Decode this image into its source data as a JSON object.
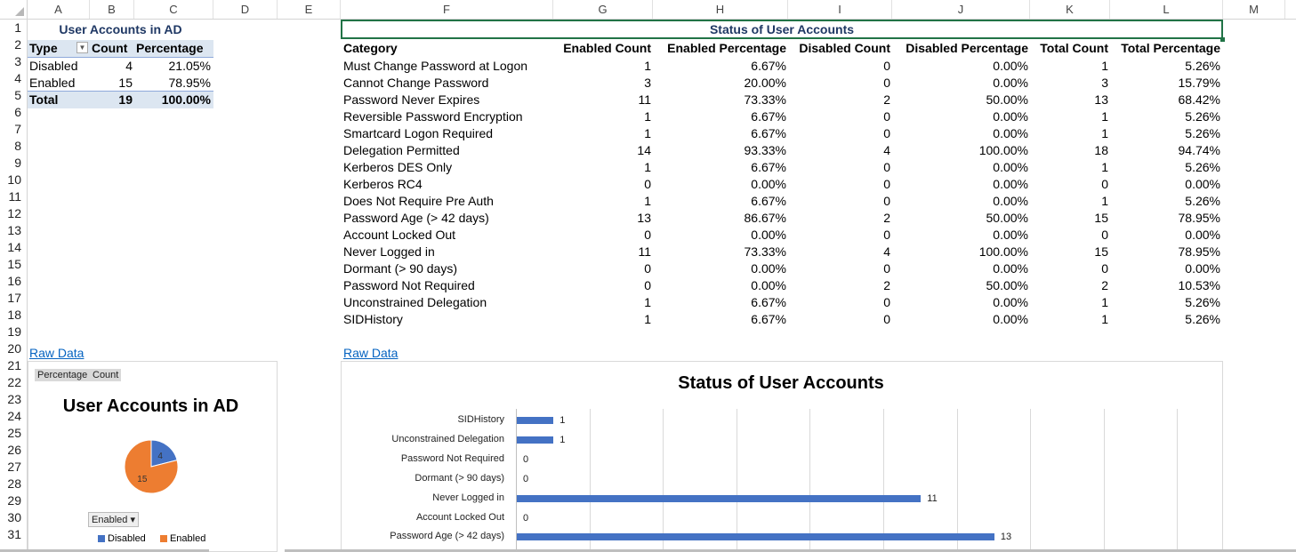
{
  "columns": [
    "A",
    "B",
    "C",
    "D",
    "E",
    "F",
    "G",
    "H",
    "I",
    "J",
    "K",
    "L",
    "M"
  ],
  "rows": [
    "1",
    "2",
    "3",
    "4",
    "5",
    "6",
    "7",
    "8",
    "9",
    "10",
    "11",
    "12",
    "13",
    "14",
    "15",
    "16",
    "17",
    "18",
    "19",
    "20",
    "21",
    "22",
    "23",
    "24",
    "25",
    "26",
    "27",
    "28",
    "29",
    "30",
    "31"
  ],
  "pivot": {
    "title": "User Accounts in AD",
    "headers": {
      "type": "Type",
      "count": "Count",
      "percentage": "Percentage"
    },
    "rows": [
      {
        "type": "Disabled",
        "count": "4",
        "percentage": "21.05%"
      },
      {
        "type": "Enabled",
        "count": "15",
        "percentage": "78.95%"
      }
    ],
    "total": {
      "type": "Total",
      "count": "19",
      "percentage": "100.00%"
    }
  },
  "status": {
    "title": "Status of User Accounts",
    "headers": [
      "Category",
      "Enabled Count",
      "Enabled Percentage",
      "Disabled Count",
      "Disabled Percentage",
      "Total Count",
      "Total Percentage"
    ],
    "rows": [
      [
        "Must Change Password at Logon",
        "1",
        "6.67%",
        "0",
        "0.00%",
        "1",
        "5.26%"
      ],
      [
        "Cannot Change Password",
        "3",
        "20.00%",
        "0",
        "0.00%",
        "3",
        "15.79%"
      ],
      [
        "Password Never Expires",
        "11",
        "73.33%",
        "2",
        "50.00%",
        "13",
        "68.42%"
      ],
      [
        "Reversible Password Encryption",
        "1",
        "6.67%",
        "0",
        "0.00%",
        "1",
        "5.26%"
      ],
      [
        "Smartcard Logon Required",
        "1",
        "6.67%",
        "0",
        "0.00%",
        "1",
        "5.26%"
      ],
      [
        "Delegation Permitted",
        "14",
        "93.33%",
        "4",
        "100.00%",
        "18",
        "94.74%"
      ],
      [
        "Kerberos DES Only",
        "1",
        "6.67%",
        "0",
        "0.00%",
        "1",
        "5.26%"
      ],
      [
        "Kerberos RC4",
        "0",
        "0.00%",
        "0",
        "0.00%",
        "0",
        "0.00%"
      ],
      [
        "Does Not Require Pre Auth",
        "1",
        "6.67%",
        "0",
        "0.00%",
        "1",
        "5.26%"
      ],
      [
        "Password Age (> 42 days)",
        "13",
        "86.67%",
        "2",
        "50.00%",
        "15",
        "78.95%"
      ],
      [
        "Account Locked Out",
        "0",
        "0.00%",
        "0",
        "0.00%",
        "0",
        "0.00%"
      ],
      [
        "Never Logged in",
        "11",
        "73.33%",
        "4",
        "100.00%",
        "15",
        "78.95%"
      ],
      [
        "Dormant (> 90 days)",
        "0",
        "0.00%",
        "0",
        "0.00%",
        "0",
        "0.00%"
      ],
      [
        "Password Not Required",
        "0",
        "0.00%",
        "2",
        "50.00%",
        "2",
        "10.53%"
      ],
      [
        "Unconstrained Delegation",
        "1",
        "6.67%",
        "0",
        "0.00%",
        "1",
        "5.26%"
      ],
      [
        "SIDHistory",
        "1",
        "6.67%",
        "0",
        "0.00%",
        "1",
        "5.26%"
      ]
    ]
  },
  "links": {
    "raw_data_left": "Raw Data",
    "raw_data_right": "Raw Data"
  },
  "pie_chart": {
    "field_buttons": [
      "Percentage",
      "Count"
    ],
    "filter_button": "Enabled",
    "colors": {
      "Disabled": "#4472c4",
      "Enabled": "#ed7d31"
    }
  },
  "chart_data": [
    {
      "type": "pie",
      "title": "User Accounts in AD",
      "categories": [
        "Disabled",
        "Enabled"
      ],
      "values": [
        4,
        15
      ],
      "legend": "bottom"
    },
    {
      "type": "bar",
      "orientation": "horizontal",
      "title": "Status of User Accounts",
      "categories": [
        "SIDHistory",
        "Unconstrained Delegation",
        "Password Not Required",
        "Dormant (> 90 days)",
        "Never Logged in",
        "Account Locked Out",
        "Password Age (> 42 days)"
      ],
      "values": [
        1,
        1,
        0,
        0,
        11,
        0,
        13
      ],
      "grid": true,
      "color": "#4472c4"
    }
  ]
}
